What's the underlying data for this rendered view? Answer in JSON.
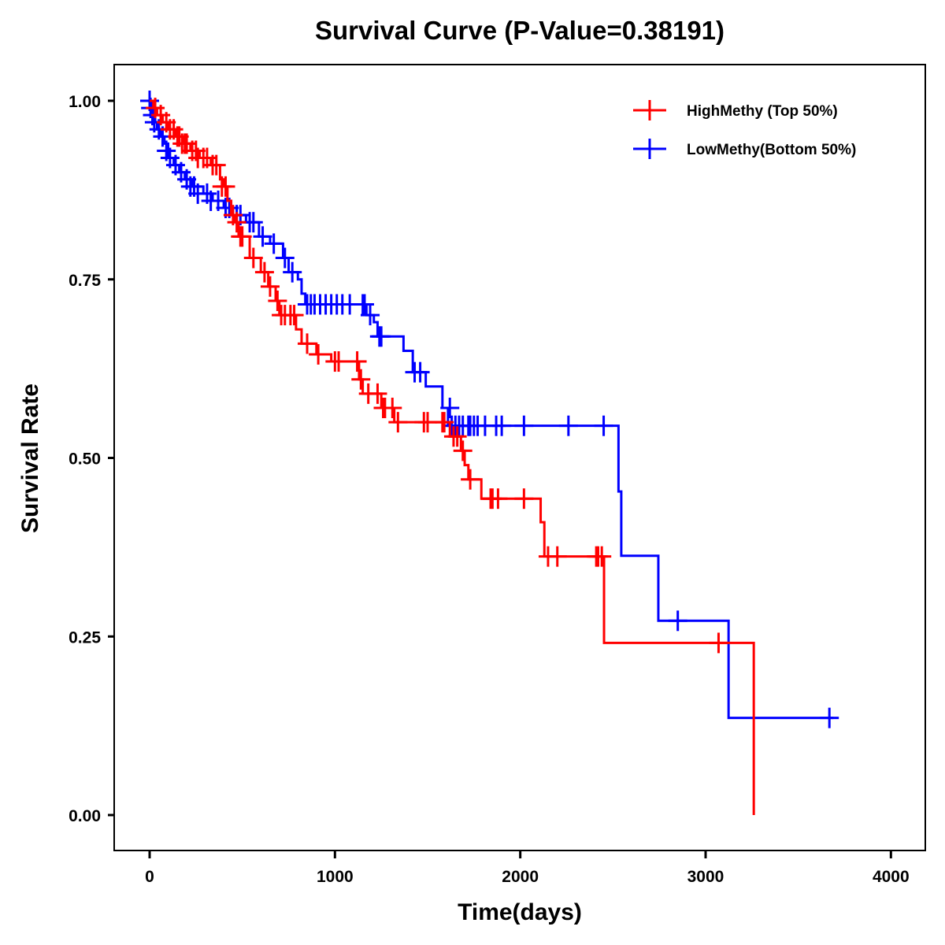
{
  "chart_data": {
    "type": "line",
    "subtype": "kaplan-meier-step",
    "title": "Survival Curve (P-Value=0.38191)",
    "xlabel": "Time(days)",
    "ylabel": "Survival Rate",
    "xlim": [
      -200,
      4200
    ],
    "ylim": [
      -0.05,
      1.05
    ],
    "xticks": [
      0,
      1000,
      2000,
      3000,
      4000
    ],
    "xtick_labels": [
      "0",
      "1000",
      "2000",
      "3000",
      "4000"
    ],
    "yticks": [
      0,
      0.25,
      0.5,
      0.75,
      1.0
    ],
    "ytick_labels": [
      "0.00",
      "0.25",
      "0.50",
      "0.75",
      "1.00"
    ],
    "grid": false,
    "legend_position": "top-right",
    "series": [
      {
        "name": "HighMethy (Top 50%)",
        "color": "#ff0000",
        "steps": [
          [
            0,
            1.0
          ],
          [
            20,
            0.99
          ],
          [
            40,
            0.98
          ],
          [
            70,
            0.97
          ],
          [
            100,
            0.96
          ],
          [
            140,
            0.95
          ],
          [
            180,
            0.94
          ],
          [
            220,
            0.93
          ],
          [
            270,
            0.92
          ],
          [
            330,
            0.91
          ],
          [
            380,
            0.89
          ],
          [
            400,
            0.88
          ],
          [
            420,
            0.86
          ],
          [
            440,
            0.84
          ],
          [
            460,
            0.83
          ],
          [
            480,
            0.81
          ],
          [
            540,
            0.78
          ],
          [
            600,
            0.76
          ],
          [
            640,
            0.74
          ],
          [
            680,
            0.72
          ],
          [
            700,
            0.7
          ],
          [
            790,
            0.68
          ],
          [
            820,
            0.66
          ],
          [
            900,
            0.645
          ],
          [
            980,
            0.635
          ],
          [
            1130,
            0.61
          ],
          [
            1150,
            0.59
          ],
          [
            1250,
            0.57
          ],
          [
            1320,
            0.55
          ],
          [
            1620,
            0.53
          ],
          [
            1680,
            0.51
          ],
          [
            1700,
            0.49
          ],
          [
            1720,
            0.47
          ],
          [
            1790,
            0.443
          ],
          [
            2110,
            0.41
          ],
          [
            2130,
            0.362
          ],
          [
            2452,
            0.241
          ],
          [
            3260,
            0.0
          ]
        ],
        "end_time": 3260,
        "censored": [
          [
            30,
            0.99
          ],
          [
            60,
            0.98
          ],
          [
            90,
            0.97
          ],
          [
            110,
            0.96
          ],
          [
            130,
            0.96
          ],
          [
            150,
            0.95
          ],
          [
            160,
            0.95
          ],
          [
            175,
            0.94
          ],
          [
            190,
            0.94
          ],
          [
            200,
            0.94
          ],
          [
            230,
            0.93
          ],
          [
            250,
            0.93
          ],
          [
            260,
            0.92
          ],
          [
            290,
            0.92
          ],
          [
            310,
            0.92
          ],
          [
            340,
            0.91
          ],
          [
            360,
            0.91
          ],
          [
            390,
            0.88
          ],
          [
            410,
            0.88
          ],
          [
            450,
            0.84
          ],
          [
            470,
            0.83
          ],
          [
            490,
            0.81
          ],
          [
            500,
            0.81
          ],
          [
            560,
            0.78
          ],
          [
            620,
            0.76
          ],
          [
            650,
            0.74
          ],
          [
            690,
            0.72
          ],
          [
            710,
            0.7
          ],
          [
            730,
            0.7
          ],
          [
            760,
            0.7
          ],
          [
            780,
            0.7
          ],
          [
            850,
            0.66
          ],
          [
            910,
            0.645
          ],
          [
            1000,
            0.635
          ],
          [
            1020,
            0.635
          ],
          [
            1120,
            0.635
          ],
          [
            1140,
            0.61
          ],
          [
            1180,
            0.59
          ],
          [
            1230,
            0.59
          ],
          [
            1260,
            0.57
          ],
          [
            1270,
            0.57
          ],
          [
            1310,
            0.57
          ],
          [
            1340,
            0.55
          ],
          [
            1480,
            0.55
          ],
          [
            1500,
            0.55
          ],
          [
            1580,
            0.55
          ],
          [
            1590,
            0.55
          ],
          [
            1640,
            0.53
          ],
          [
            1660,
            0.53
          ],
          [
            1690,
            0.51
          ],
          [
            1730,
            0.47
          ],
          [
            1840,
            0.443
          ],
          [
            1850,
            0.443
          ],
          [
            1880,
            0.443
          ],
          [
            2020,
            0.443
          ],
          [
            2150,
            0.362
          ],
          [
            2200,
            0.362
          ],
          [
            2410,
            0.362
          ],
          [
            2420,
            0.362
          ],
          [
            2440,
            0.362
          ],
          [
            3070,
            0.241
          ]
        ]
      },
      {
        "name": "LowMethy(Bottom 50%)",
        "color": "#0000ff",
        "steps": [
          [
            0,
            1.0
          ],
          [
            10,
            0.99
          ],
          [
            20,
            0.98
          ],
          [
            30,
            0.97
          ],
          [
            40,
            0.96
          ],
          [
            60,
            0.95
          ],
          [
            80,
            0.94
          ],
          [
            100,
            0.92
          ],
          [
            130,
            0.91
          ],
          [
            160,
            0.9
          ],
          [
            190,
            0.89
          ],
          [
            230,
            0.88
          ],
          [
            290,
            0.87
          ],
          [
            340,
            0.86
          ],
          [
            400,
            0.85
          ],
          [
            450,
            0.84
          ],
          [
            520,
            0.83
          ],
          [
            590,
            0.81
          ],
          [
            650,
            0.8
          ],
          [
            720,
            0.78
          ],
          [
            750,
            0.76
          ],
          [
            800,
            0.75
          ],
          [
            820,
            0.73
          ],
          [
            840,
            0.715
          ],
          [
            1170,
            0.7
          ],
          [
            1210,
            0.69
          ],
          [
            1230,
            0.67
          ],
          [
            1370,
            0.65
          ],
          [
            1420,
            0.62
          ],
          [
            1490,
            0.6
          ],
          [
            1580,
            0.57
          ],
          [
            1610,
            0.545
          ],
          [
            2530,
            0.453
          ],
          [
            2545,
            0.363
          ],
          [
            2745,
            0.272
          ],
          [
            3124,
            0.136
          ]
        ],
        "end_time": 3690,
        "censored": [
          [
            0,
            1.0
          ],
          [
            5,
            0.99
          ],
          [
            15,
            0.98
          ],
          [
            25,
            0.97
          ],
          [
            50,
            0.96
          ],
          [
            70,
            0.95
          ],
          [
            90,
            0.93
          ],
          [
            110,
            0.92
          ],
          [
            140,
            0.91
          ],
          [
            170,
            0.9
          ],
          [
            200,
            0.89
          ],
          [
            220,
            0.88
          ],
          [
            240,
            0.88
          ],
          [
            260,
            0.87
          ],
          [
            310,
            0.87
          ],
          [
            330,
            0.86
          ],
          [
            370,
            0.86
          ],
          [
            410,
            0.85
          ],
          [
            430,
            0.85
          ],
          [
            470,
            0.84
          ],
          [
            490,
            0.84
          ],
          [
            540,
            0.83
          ],
          [
            560,
            0.83
          ],
          [
            610,
            0.81
          ],
          [
            670,
            0.8
          ],
          [
            730,
            0.78
          ],
          [
            770,
            0.76
          ],
          [
            850,
            0.715
          ],
          [
            870,
            0.715
          ],
          [
            890,
            0.715
          ],
          [
            920,
            0.715
          ],
          [
            950,
            0.715
          ],
          [
            980,
            0.715
          ],
          [
            1010,
            0.715
          ],
          [
            1040,
            0.715
          ],
          [
            1080,
            0.715
          ],
          [
            1150,
            0.715
          ],
          [
            1160,
            0.715
          ],
          [
            1190,
            0.7
          ],
          [
            1240,
            0.67
          ],
          [
            1250,
            0.67
          ],
          [
            1430,
            0.62
          ],
          [
            1460,
            0.62
          ],
          [
            1620,
            0.57
          ],
          [
            1630,
            0.545
          ],
          [
            1650,
            0.545
          ],
          [
            1670,
            0.545
          ],
          [
            1690,
            0.545
          ],
          [
            1720,
            0.545
          ],
          [
            1730,
            0.545
          ],
          [
            1750,
            0.545
          ],
          [
            1770,
            0.545
          ],
          [
            1810,
            0.545
          ],
          [
            1870,
            0.545
          ],
          [
            1900,
            0.545
          ],
          [
            2020,
            0.545
          ],
          [
            2260,
            0.545
          ],
          [
            2450,
            0.545
          ],
          [
            2850,
            0.272
          ],
          [
            3668,
            0.136
          ]
        ]
      }
    ]
  }
}
